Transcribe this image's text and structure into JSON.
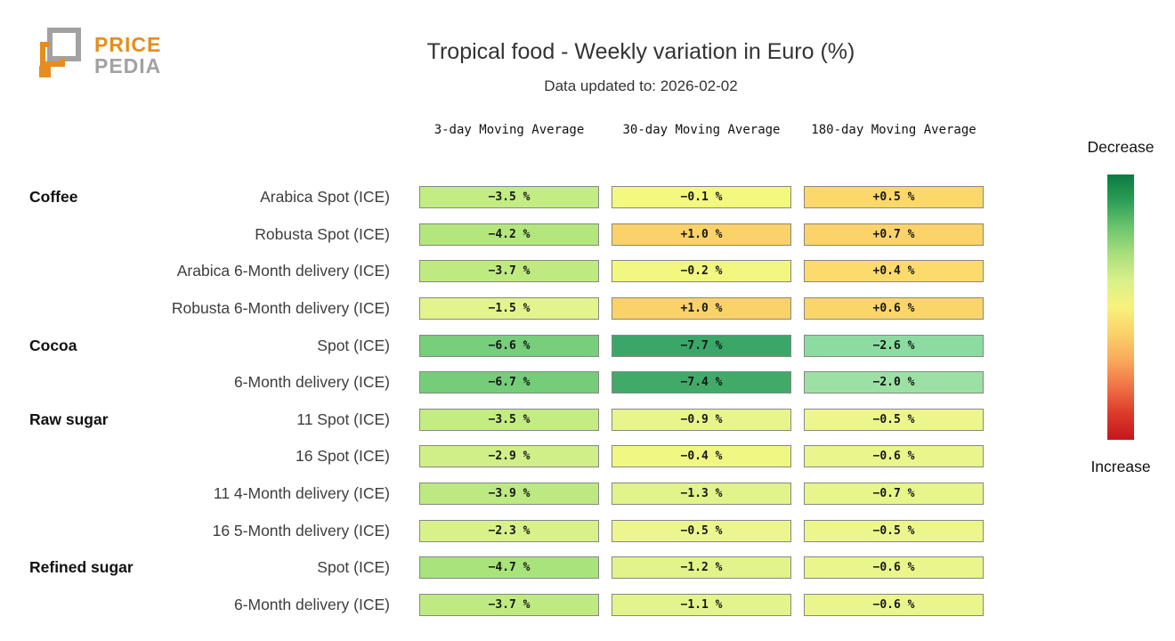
{
  "header": {
    "logo_line1": "PRICE",
    "logo_line2": "PEDIA",
    "title": "Tropical food - Weekly variation in Euro (%)",
    "subtitle": "Data updated to: 2026-02-02"
  },
  "chart_data": {
    "type": "heatmap",
    "title": "Tropical food - Weekly variation in Euro (%)",
    "subtitle": "Data updated to: 2026-02-02",
    "columns": [
      "3-day Moving Average",
      "30-day Moving Average",
      "180-day Moving Average"
    ],
    "unit": "%",
    "rows": [
      {
        "group": "Coffee",
        "label": "Arabica Spot (ICE)",
        "values": [
          -3.5,
          -0.1,
          0.5
        ],
        "display": [
          "−3.5 %",
          "−0.1 %",
          "+0.5 %"
        ],
        "colors": [
          "#c3ec83",
          "#f3f87e",
          "#fcd86b"
        ]
      },
      {
        "group": "",
        "label": "Robusta Spot (ICE)",
        "values": [
          -4.2,
          1.0,
          0.7
        ],
        "display": [
          "−4.2 %",
          "+1.0 %",
          "+0.7 %"
        ],
        "colors": [
          "#b3e77d",
          "#fbd169",
          "#fbd369"
        ]
      },
      {
        "group": "",
        "label": "Arabica 6-Month delivery (ICE)",
        "values": [
          -3.7,
          -0.2,
          0.4
        ],
        "display": [
          "−3.7 %",
          "−0.2 %",
          "+0.4 %"
        ],
        "colors": [
          "#bfea81",
          "#f1f77f",
          "#fcdb6c"
        ]
      },
      {
        "group": "",
        "label": "Robusta 6-Month delivery (ICE)",
        "values": [
          -1.5,
          1.0,
          0.6
        ],
        "display": [
          "−1.5 %",
          "+1.0 %",
          "+0.6 %"
        ],
        "colors": [
          "#e3f48d",
          "#fbd169",
          "#fbd56a"
        ]
      },
      {
        "group": "Cocoa",
        "label": "Spot (ICE)",
        "values": [
          -6.6,
          -7.7,
          -2.6
        ],
        "display": [
          "−6.6 %",
          "−7.7 %",
          "−2.6 %"
        ],
        "colors": [
          "#77ce7b",
          "#3aa768",
          "#8cdba1"
        ]
      },
      {
        "group": "",
        "label": "6-Month delivery (ICE)",
        "values": [
          -6.7,
          -7.4,
          -2.0
        ],
        "display": [
          "−6.7 %",
          "−7.4 %",
          "−2.0 %"
        ],
        "colors": [
          "#75cd7a",
          "#42aa69",
          "#9ce0a5"
        ]
      },
      {
        "group": "Raw sugar",
        "label": "11 Spot (ICE)",
        "values": [
          -3.5,
          -0.9,
          -0.5
        ],
        "display": [
          "−3.5 %",
          "−0.9 %",
          "−0.5 %"
        ],
        "colors": [
          "#c3ec83",
          "#e8f58d",
          "#ecf68d"
        ]
      },
      {
        "group": "",
        "label": "16 Spot (ICE)",
        "values": [
          -2.9,
          -0.4,
          -0.6
        ],
        "display": [
          "−2.9 %",
          "−0.4 %",
          "−0.6 %"
        ],
        "colors": [
          "#d1ef88",
          "#f0f783",
          "#eaf58c"
        ]
      },
      {
        "group": "",
        "label": "11 4-Month delivery (ICE)",
        "values": [
          -3.9,
          -1.3,
          -0.7
        ],
        "display": [
          "−3.9 %",
          "−1.3 %",
          "−0.7 %"
        ],
        "colors": [
          "#bce981",
          "#e1f38b",
          "#e8f58b"
        ]
      },
      {
        "group": "",
        "label": "16 5-Month delivery (ICE)",
        "values": [
          -2.3,
          -0.5,
          -0.5
        ],
        "display": [
          "−2.3 %",
          "−0.5 %",
          "−0.5 %"
        ],
        "colors": [
          "#d9f18a",
          "#edf68e",
          "#ecf68d"
        ]
      },
      {
        "group": "Refined sugar",
        "label": "Spot (ICE)",
        "values": [
          -4.7,
          -1.2,
          -0.6
        ],
        "display": [
          "−4.7 %",
          "−1.2 %",
          "−0.6 %"
        ],
        "colors": [
          "#a8e37b",
          "#e2f38b",
          "#eaf58c"
        ]
      },
      {
        "group": "",
        "label": "6-Month delivery (ICE)",
        "values": [
          -3.7,
          -1.1,
          -0.6
        ],
        "display": [
          "−3.7 %",
          "−1.1 %",
          "−0.6 %"
        ],
        "colors": [
          "#bfea81",
          "#e4f48c",
          "#eaf58c"
        ]
      }
    ],
    "colorbar": {
      "top_label": "Decrease",
      "bottom_label": "Increase",
      "gradient": [
        "#0a7b3f",
        "#2c9e56",
        "#6cc56c",
        "#a8df7c",
        "#daf089",
        "#f7f27c",
        "#fbd168",
        "#f9a95c",
        "#ef7345",
        "#dc3b2b",
        "#c5161d"
      ]
    },
    "legend_position": "right"
  }
}
